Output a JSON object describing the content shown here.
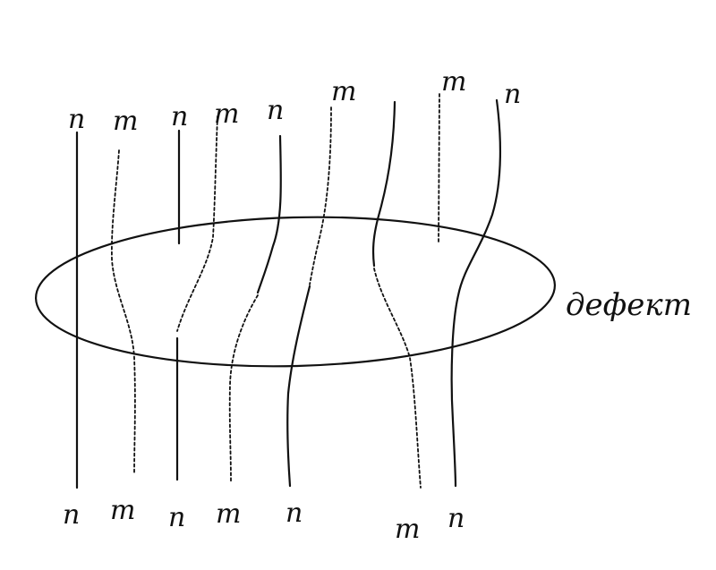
{
  "diagram": {
    "top_labels": [
      "n",
      "m",
      "n",
      "m",
      "n",
      "m",
      "m",
      "n"
    ],
    "bottom_labels": [
      "n",
      "m",
      "n",
      "m",
      "n",
      "m",
      "n"
    ],
    "region_label": "дефект",
    "line_color": "#111111",
    "background_color": "#ffffff"
  }
}
